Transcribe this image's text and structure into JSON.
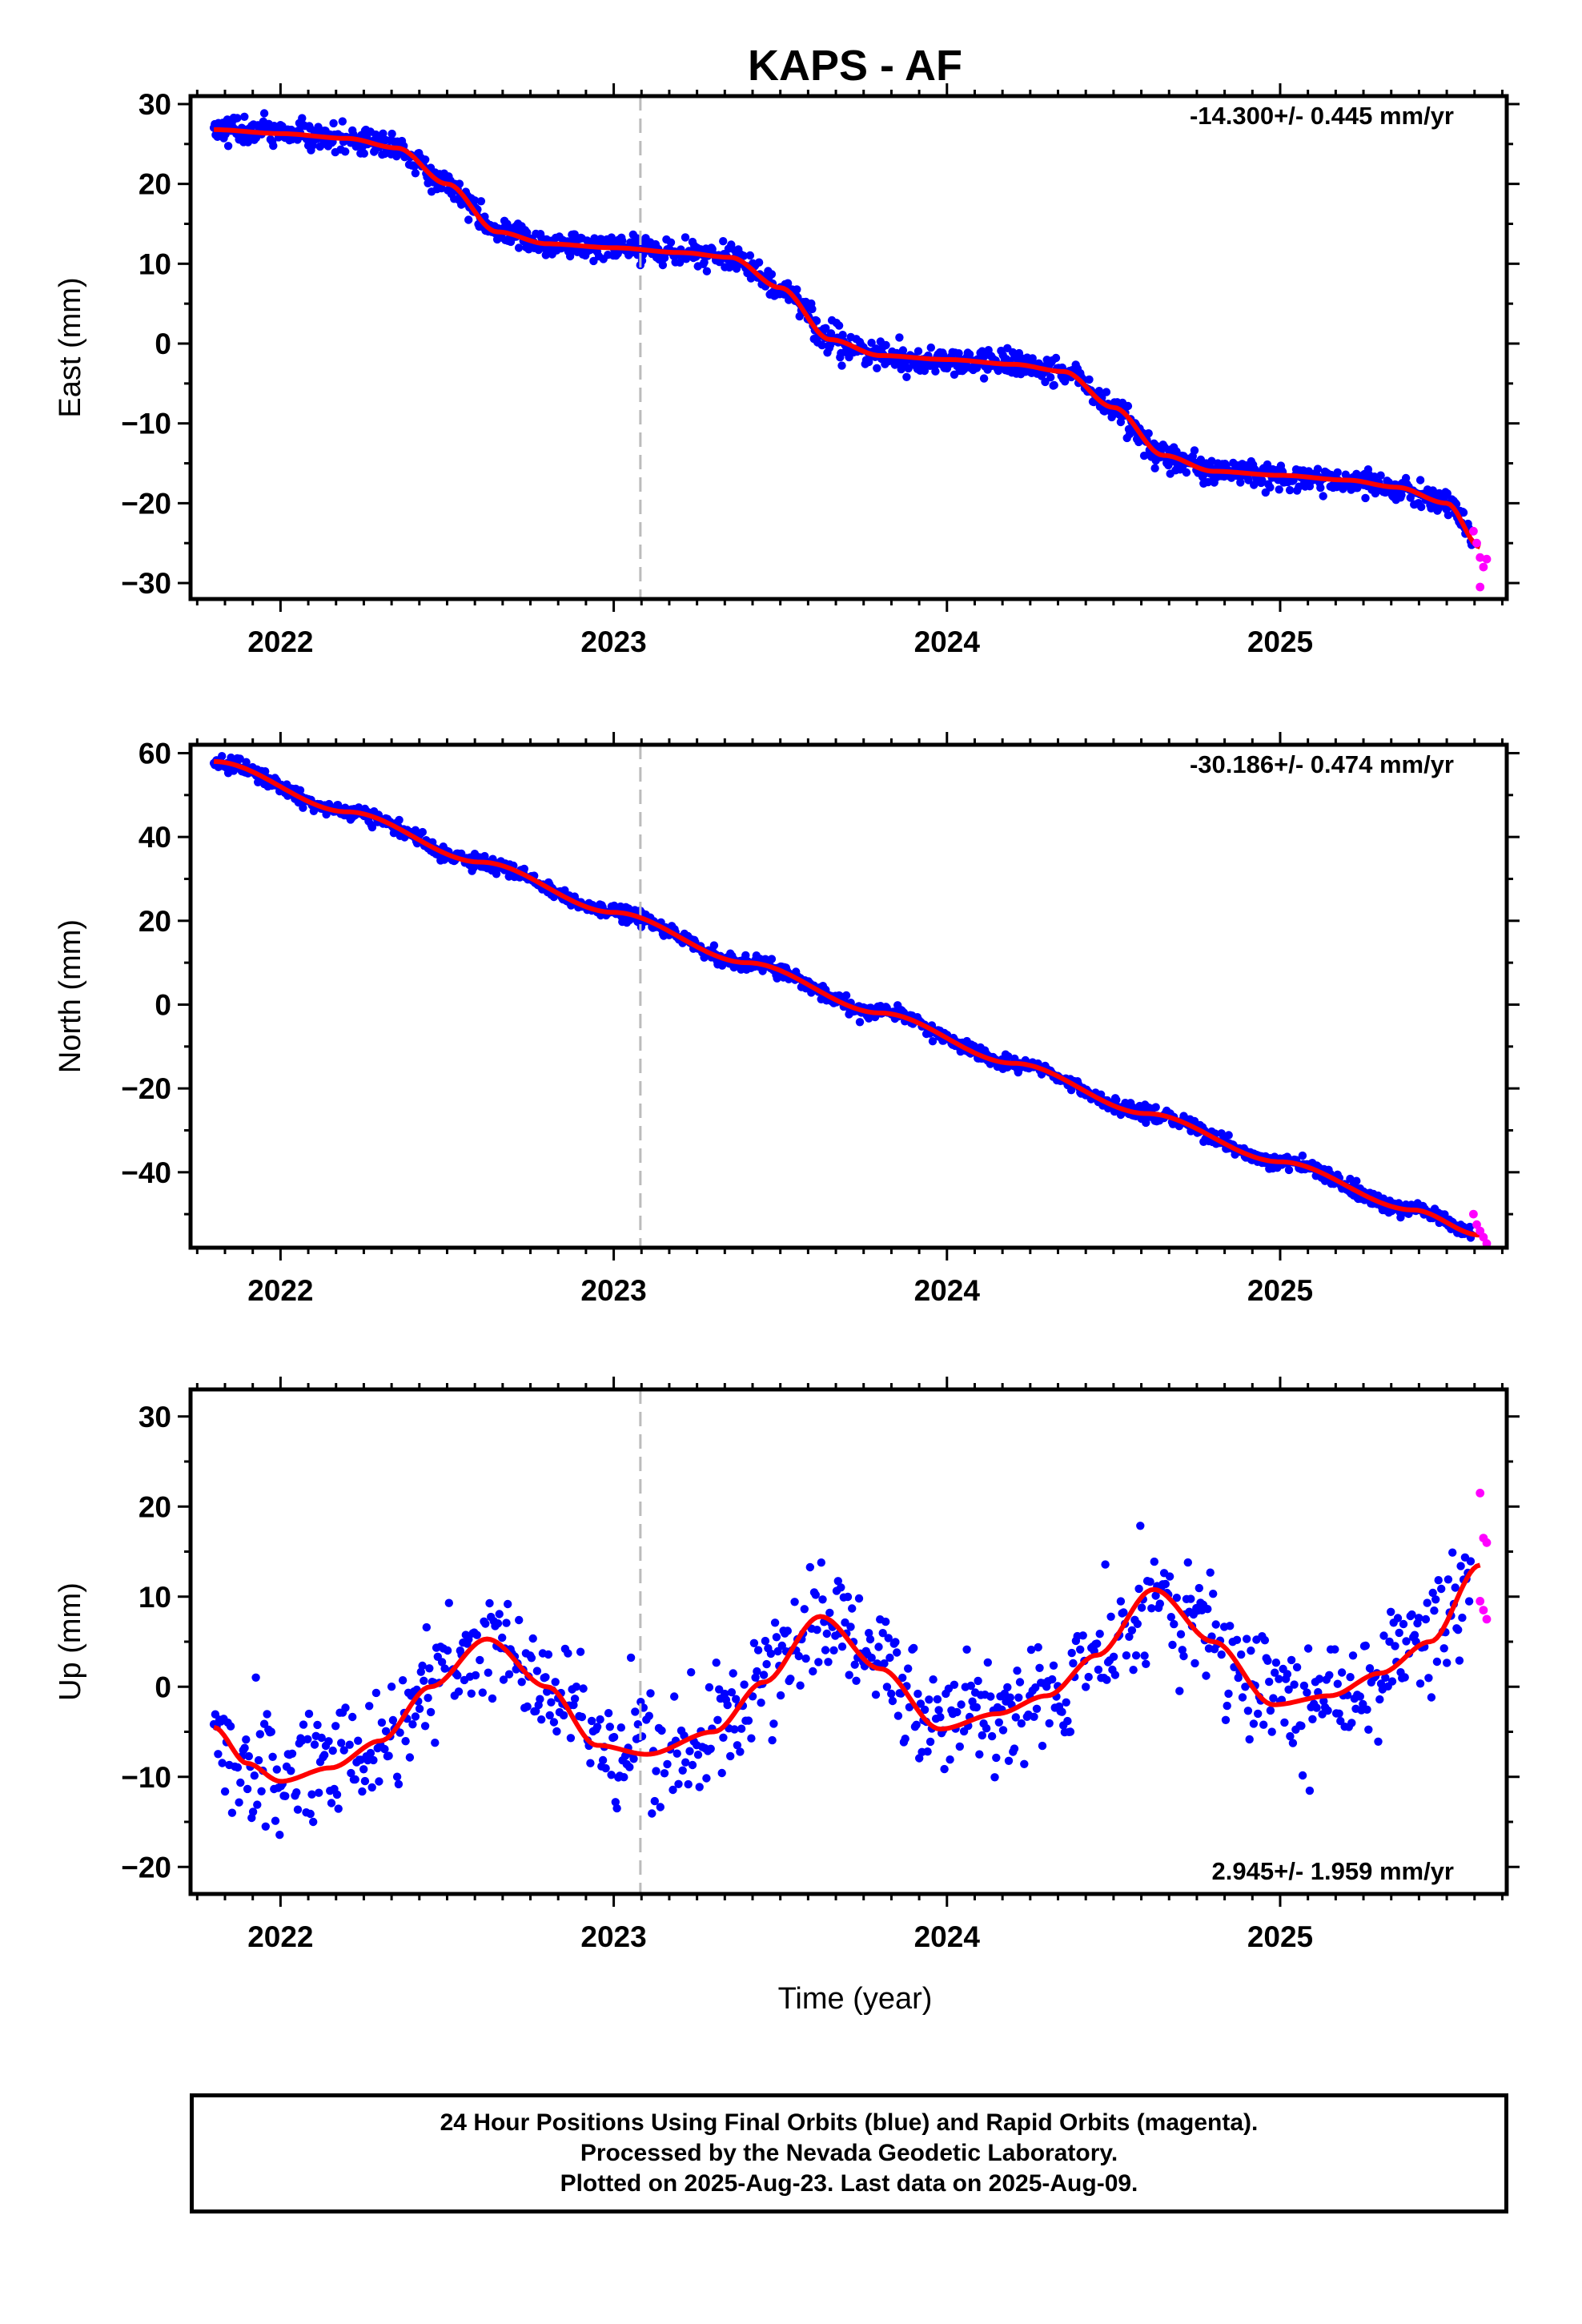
{
  "chart_data": {
    "type": "scatter",
    "title": "KAPS - AF",
    "xlabel": "Time (year)",
    "x_ticks": [
      "2022",
      "2023",
      "2024",
      "2025"
    ],
    "xlim": [
      2021.73,
      2025.68
    ],
    "reference_line_x": 2023.08,
    "colors": {
      "final_orbits": "#0000ff",
      "rapid_orbits": "#ff00ff",
      "model_fit": "#ff0000",
      "reference_line": "#bbbbbb"
    },
    "panels": [
      {
        "component": "east",
        "ylabel": "East (mm)",
        "ylim": [
          -32,
          31
        ],
        "y_ticks": [
          "30",
          "20",
          "10",
          "0",
          "−10",
          "−20",
          "−30"
        ],
        "rate_label": "-14.300+/- 0.445 mm/yr",
        "rate_label_position": "top-right",
        "model_fit": {
          "x": [
            2021.8,
            2022.0,
            2022.2,
            2022.35,
            2022.5,
            2022.65,
            2022.8,
            2023.0,
            2023.2,
            2023.35,
            2023.5,
            2023.65,
            2023.8,
            2024.0,
            2024.2,
            2024.35,
            2024.5,
            2024.65,
            2024.8,
            2025.0,
            2025.2,
            2025.35,
            2025.5,
            2025.6
          ],
          "y": [
            26.8,
            26.3,
            25.7,
            24.5,
            20.0,
            14.0,
            12.5,
            12.0,
            11.4,
            10.8,
            7.0,
            0.5,
            -1.5,
            -2.0,
            -2.6,
            -3.5,
            -8.0,
            -14.0,
            -16.0,
            -16.5,
            -17.1,
            -18.0,
            -20.0,
            -25.5
          ]
        },
        "rapid_orbits": {
          "x": [
            2025.58,
            2025.59,
            2025.6,
            2025.61,
            2025.62,
            2025.6
          ],
          "y": [
            -23.5,
            -25.0,
            -26.8,
            -28.0,
            -27.0,
            -30.5
          ]
        }
      },
      {
        "component": "north",
        "ylabel": "North (mm)",
        "ylim": [
          -58,
          62
        ],
        "y_ticks": [
          "60",
          "40",
          "20",
          "0",
          "−20",
          "−40"
        ],
        "rate_label": "-30.186+/- 0.474 mm/yr",
        "rate_label_position": "top-right",
        "model_fit": {
          "x": [
            2021.8,
            2022.2,
            2022.6,
            2023.0,
            2023.4,
            2023.8,
            2024.2,
            2024.6,
            2025.0,
            2025.4,
            2025.6
          ],
          "y": [
            58.0,
            46.0,
            34.0,
            22.0,
            10.0,
            -2.0,
            -14.0,
            -26.0,
            -37.5,
            -49.0,
            -55.0
          ]
        },
        "rapid_orbits": {
          "x": [
            2025.58,
            2025.59,
            2025.6,
            2025.61,
            2025.62
          ],
          "y": [
            -50.0,
            -52.5,
            -54.0,
            -55.5,
            -57.0
          ]
        }
      },
      {
        "component": "up",
        "ylabel": "Up (mm)",
        "ylim": [
          -23,
          33
        ],
        "y_ticks": [
          "30",
          "20",
          "10",
          "0",
          "−10",
          "−20"
        ],
        "rate_label": "2.945+/- 1.959 mm/yr",
        "rate_label_position": "bottom-right",
        "model_fit": {
          "x": [
            2021.8,
            2021.9,
            2022.0,
            2022.15,
            2022.3,
            2022.45,
            2022.62,
            2022.8,
            2022.95,
            2023.1,
            2023.3,
            2023.45,
            2023.62,
            2023.8,
            2023.98,
            2024.15,
            2024.3,
            2024.45,
            2024.62,
            2024.8,
            2024.98,
            2025.15,
            2025.3,
            2025.45,
            2025.6
          ],
          "y": [
            -4.5,
            -8.5,
            -10.5,
            -9.0,
            -6.0,
            0.0,
            5.3,
            0.0,
            -6.5,
            -7.5,
            -5.0,
            0.5,
            7.8,
            2.0,
            -4.7,
            -3.0,
            -1.0,
            3.5,
            10.8,
            5.0,
            -2.0,
            -1.0,
            1.5,
            5.0,
            13.5
          ]
        },
        "rapid_orbits": {
          "x": [
            2025.6,
            2025.61,
            2025.62,
            2025.6,
            2025.61,
            2025.62
          ],
          "y": [
            21.5,
            16.5,
            16.0,
            9.5,
            8.5,
            7.5
          ]
        }
      }
    ]
  },
  "footer": {
    "line1": "24 Hour Positions Using Final Orbits (blue) and Rapid Orbits (magenta).",
    "line2": "Processed by the Nevada Geodetic Laboratory.",
    "line3": "Plotted on 2025-Aug-23. Last data on 2025-Aug-09."
  }
}
